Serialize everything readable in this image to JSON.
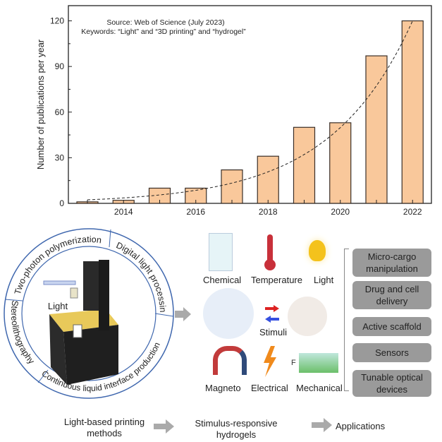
{
  "chart_data": {
    "type": "bar",
    "categories": [
      "2013",
      "2014",
      "2015",
      "2016",
      "2017",
      "2018",
      "2019",
      "2020",
      "2021",
      "2022"
    ],
    "values": [
      1,
      2,
      10,
      10,
      22,
      31,
      50,
      53,
      97,
      120
    ],
    "title": "",
    "annotations": [
      "Source: Web of Science (July 2023)",
      "Keywords: “Light” and “3D printing” and “hydrogel”"
    ],
    "xlabel": "",
    "ylabel": "Number of publications per year",
    "ylim": [
      0,
      130
    ],
    "yticks": [
      0,
      30,
      60,
      90,
      120
    ],
    "xticks": [
      "2014",
      "2016",
      "2018",
      "2020",
      "2022"
    ],
    "trendline": "exponential fit (dashed)",
    "bar_color": "#f9c89b",
    "grid": false
  },
  "diagram": {
    "methods_ring": [
      "Two-photon polymerization",
      "Digital light processing",
      "Continuous liquid interface production",
      "Stereolithography"
    ],
    "printer_label": "Light",
    "stimuli": [
      "Chemical",
      "Temperature",
      "Light",
      "Magneto",
      "Electrical",
      "Mechanical"
    ],
    "center_label": "Stimuli",
    "force_label": "F",
    "applications": [
      "Micro-cargo manipulation",
      "Drug and cell delivery",
      "Active scaffold",
      "Sensors",
      "Tunable optical devices"
    ],
    "flow": [
      "Light-based printing methods",
      "Stimulus-responsive hydrogels",
      "Applications"
    ],
    "ring_color": "#4a6fb0",
    "app_box_color": "#9a9a9a"
  }
}
